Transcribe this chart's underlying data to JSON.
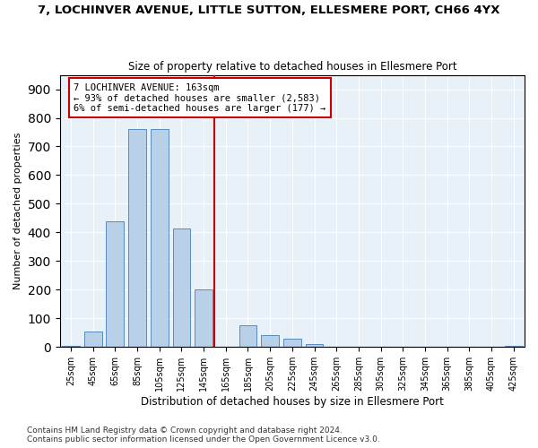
{
  "title": "7, LOCHINVER AVENUE, LITTLE SUTTON, ELLESMERE PORT, CH66 4YX",
  "subtitle": "Size of property relative to detached houses in Ellesmere Port",
  "xlabel": "Distribution of detached houses by size in Ellesmere Port",
  "ylabel": "Number of detached properties",
  "bin_labels": [
    "25sqm",
    "45sqm",
    "65sqm",
    "85sqm",
    "105sqm",
    "125sqm",
    "145sqm",
    "165sqm",
    "185sqm",
    "205sqm",
    "225sqm",
    "245sqm",
    "265sqm",
    "285sqm",
    "305sqm",
    "325sqm",
    "345sqm",
    "365sqm",
    "385sqm",
    "405sqm",
    "425sqm"
  ],
  "bar_values": [
    5,
    55,
    440,
    760,
    760,
    415,
    200,
    0,
    75,
    40,
    30,
    10,
    0,
    0,
    0,
    0,
    0,
    0,
    0,
    0,
    3
  ],
  "bar_color": "#b8d0e8",
  "bar_edge_color": "#5a8bbf",
  "vline_x": 6.5,
  "property_line_label": "7 LOCHINVER AVENUE: 163sqm",
  "annotation_line1": "← 93% of detached houses are smaller (2,583)",
  "annotation_line2": "6% of semi-detached houses are larger (177) →",
  "vline_color": "#cc0000",
  "annotation_border_color": "#cc0000",
  "ylim": [
    0,
    950
  ],
  "yticks": [
    0,
    100,
    200,
    300,
    400,
    500,
    600,
    700,
    800,
    900
  ],
  "background_color": "#e8f0f8",
  "footnote1": "Contains HM Land Registry data © Crown copyright and database right 2024.",
  "footnote2": "Contains public sector information licensed under the Open Government Licence v3.0."
}
